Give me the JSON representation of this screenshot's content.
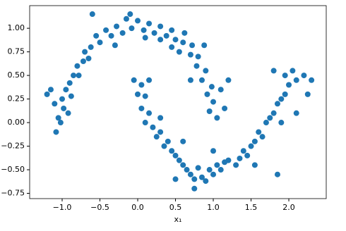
{
  "chart_data": {
    "type": "scatter",
    "xlabel": "x₁",
    "color": "#1f77b4",
    "x": [
      1.05,
      0.95,
      1.0,
      0.92,
      0.98,
      0.85,
      0.9,
      0.78,
      0.8,
      0.7,
      0.72,
      0.6,
      0.62,
      0.5,
      0.45,
      0.38,
      0.3,
      0.22,
      0.15,
      0.08,
      0.0,
      -0.08,
      -0.15,
      -0.2,
      -0.28,
      -0.35,
      -0.42,
      -0.5,
      -0.55,
      -0.62,
      -0.7,
      -0.72,
      -0.8,
      -0.85,
      -0.9,
      -0.95,
      -1.0,
      -0.98,
      -1.05,
      -1.1,
      -1.2,
      -1.15,
      -1.02,
      -1.08,
      -0.92,
      -0.88,
      -0.78,
      -0.65,
      -0.6,
      -0.1,
      0.45,
      0.88,
      1.1,
      1.15,
      1.2,
      0.7,
      0.3,
      -0.3,
      0.1,
      0.55,
      -0.05,
      0.05,
      0.0,
      0.1,
      0.05,
      0.15,
      0.1,
      0.2,
      0.25,
      0.3,
      0.35,
      0.4,
      0.45,
      0.5,
      0.55,
      0.6,
      0.65,
      0.7,
      0.75,
      0.8,
      0.85,
      0.9,
      0.95,
      1.0,
      1.05,
      1.1,
      1.15,
      1.2,
      1.3,
      1.35,
      1.4,
      1.45,
      1.5,
      1.55,
      1.6,
      1.65,
      1.7,
      1.75,
      1.8,
      1.85,
      1.9,
      1.95,
      2.0,
      1.95,
      2.05,
      2.1,
      2.2,
      2.3,
      2.25,
      1.85,
      0.75,
      0.5,
      0.15,
      1.8,
      2.1,
      1.55,
      0.3,
      1.0,
      0.6,
      1.9
    ],
    "values": [
      0.05,
      0.12,
      0.22,
      0.3,
      0.38,
      0.45,
      0.55,
      0.6,
      0.7,
      0.72,
      0.82,
      0.85,
      0.95,
      0.88,
      0.98,
      0.92,
      1.02,
      0.95,
      1.05,
      0.98,
      1.08,
      1.0,
      1.1,
      0.95,
      1.02,
      0.92,
      0.98,
      0.85,
      0.92,
      0.8,
      0.75,
      0.65,
      0.6,
      0.5,
      0.42,
      0.35,
      0.25,
      0.15,
      0.05,
      0.2,
      0.3,
      0.35,
      0.0,
      -0.1,
      0.1,
      0.28,
      0.5,
      0.68,
      1.15,
      1.15,
      0.8,
      0.82,
      0.35,
      0.15,
      0.45,
      0.45,
      0.88,
      0.82,
      0.9,
      0.75,
      0.45,
      0.4,
      0.3,
      0.28,
      0.15,
      0.1,
      0.0,
      -0.05,
      -0.15,
      -0.1,
      -0.25,
      -0.2,
      -0.3,
      -0.35,
      -0.4,
      -0.45,
      -0.5,
      -0.55,
      -0.6,
      -0.48,
      -0.58,
      -0.62,
      -0.5,
      -0.55,
      -0.45,
      -0.5,
      -0.42,
      -0.4,
      -0.45,
      -0.38,
      -0.3,
      -0.35,
      -0.25,
      -0.2,
      -0.1,
      -0.15,
      0.0,
      0.05,
      0.1,
      0.2,
      0.25,
      0.3,
      0.4,
      0.5,
      0.55,
      0.45,
      0.5,
      0.45,
      0.3,
      -0.55,
      -0.7,
      -0.6,
      0.45,
      0.55,
      0.1,
      -0.45,
      0.05,
      -0.3,
      -0.2,
      0.0
    ],
    "xlim": [
      -1.43,
      2.495
    ],
    "ylim": [
      -0.806,
      1.24
    ],
    "xticks": [
      {
        "value": -1,
        "label": "−1.0"
      },
      {
        "value": -0.5,
        "label": "−0.5"
      },
      {
        "value": 0,
        "label": "0.0"
      },
      0.5,
      {
        "value": 1,
        "label": "1.0"
      },
      1.5,
      {
        "value": 2,
        "label": "2.0"
      }
    ],
    "yticks": [
      {
        "value": -0.75,
        "label": "−0.75"
      },
      {
        "value": -0.5,
        "label": "−0.50"
      },
      {
        "value": -0.25,
        "label": "−0.25"
      },
      {
        "value": 0,
        "label": "0.00"
      },
      0.25,
      {
        "value": 0.5,
        "label": "0.50"
      },
      0.75,
      {
        "value": 1,
        "label": "1.00"
      }
    ]
  }
}
